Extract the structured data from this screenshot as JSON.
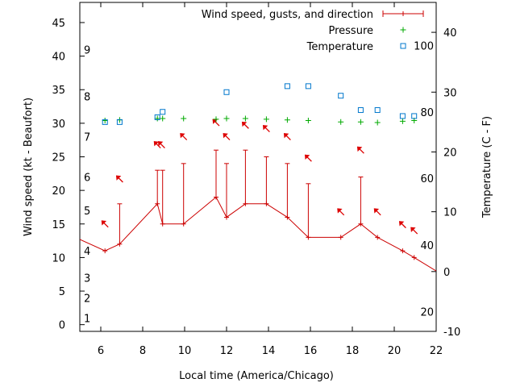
{
  "chart_data": {
    "type": "line",
    "xlabel": "Local time (America/Chicago)",
    "ylabel": "Wind speed (kt - Beaufort)",
    "y2label": "Temperature (C - F)",
    "xlim": [
      5,
      22
    ],
    "ylim": [
      -1,
      48
    ],
    "y2lim": [
      -10,
      45
    ],
    "xticks": [
      6,
      8,
      10,
      12,
      14,
      16,
      18,
      20,
      22
    ],
    "yticks": [
      0,
      5,
      10,
      15,
      20,
      25,
      30,
      35,
      40,
      45
    ],
    "y2ticks": [
      -10,
      0,
      10,
      20,
      30,
      40
    ],
    "beaufort_labels": [
      {
        "label": "1",
        "y": 1
      },
      {
        "label": "2",
        "y": 4
      },
      {
        "label": "3",
        "y": 7
      },
      {
        "label": "4",
        "y": 11
      },
      {
        "label": "5",
        "y": 17
      },
      {
        "label": "6",
        "y": 22
      },
      {
        "label": "7",
        "y": 28
      },
      {
        "label": "8",
        "y": 34
      },
      {
        "label": "9",
        "y": 41
      }
    ],
    "fahrenheit_labels": [
      {
        "label": "20",
        "y2": -6.7
      },
      {
        "label": "40",
        "y2": 4.4
      },
      {
        "label": "60",
        "y2": 15.6
      },
      {
        "label": "80",
        "y2": 26.7
      },
      {
        "label": "100",
        "y2": 37.8
      }
    ],
    "series": [
      {
        "name": "Wind speed, gusts, and direction",
        "color": "#cc0000",
        "x": [
          5.0,
          6.2,
          6.9,
          8.7,
          8.95,
          9.95,
          11.5,
          12.0,
          12.9,
          13.9,
          14.9,
          15.9,
          17.45,
          18.4,
          19.2,
          20.4,
          20.95,
          22.0
        ],
        "wind": [
          12.7,
          11.0,
          12.0,
          18.0,
          15.0,
          15.0,
          19.0,
          16.0,
          18.0,
          18.0,
          16.0,
          13.0,
          13.0,
          15.0,
          13.0,
          11.0,
          10.0,
          8.0
        ],
        "gusts": [
          null,
          null,
          18.0,
          23.0,
          23.0,
          24.0,
          26.0,
          24.0,
          26.0,
          25.0,
          24.0,
          21.0,
          null,
          22.0,
          null,
          null,
          null,
          null
        ]
      },
      {
        "name": "Pressure",
        "color": "#00aa00",
        "x": [
          6.2,
          6.9,
          8.7,
          8.95,
          9.95,
          11.5,
          12.0,
          12.9,
          13.9,
          14.9,
          15.9,
          17.45,
          18.4,
          19.2,
          20.4,
          20.95
        ],
        "y": [
          30.4,
          30.5,
          30.7,
          30.7,
          30.7,
          30.6,
          30.7,
          30.7,
          30.6,
          30.5,
          30.4,
          30.2,
          30.2,
          30.1,
          30.3,
          30.4
        ]
      },
      {
        "name": "Temperature",
        "color": "#0077cc",
        "x": [
          6.2,
          6.9,
          8.7,
          8.95,
          12.0,
          14.9,
          15.9,
          17.45,
          18.4,
          19.2,
          20.4,
          20.95
        ],
        "y2": [
          25.0,
          25.0,
          25.8,
          26.7,
          30.0,
          31.0,
          31.0,
          29.4,
          27.0,
          27.0,
          26.0,
          26.0
        ]
      }
    ],
    "direction_arrows": [
      {
        "x": 6.2,
        "y": 15.0
      },
      {
        "x": 6.9,
        "y": 21.7
      },
      {
        "x": 8.7,
        "y": 26.8
      },
      {
        "x": 8.9,
        "y": 26.8
      },
      {
        "x": 9.95,
        "y": 28.0
      },
      {
        "x": 11.5,
        "y": 30.1
      },
      {
        "x": 12.0,
        "y": 28.0
      },
      {
        "x": 12.9,
        "y": 29.7
      },
      {
        "x": 13.9,
        "y": 29.2
      },
      {
        "x": 14.9,
        "y": 28.0
      },
      {
        "x": 15.9,
        "y": 24.8
      },
      {
        "x": 17.45,
        "y": 16.8
      },
      {
        "x": 18.4,
        "y": 26.0
      },
      {
        "x": 19.2,
        "y": 16.8
      },
      {
        "x": 20.4,
        "y": 14.9
      },
      {
        "x": 20.95,
        "y": 14.0
      }
    ]
  }
}
